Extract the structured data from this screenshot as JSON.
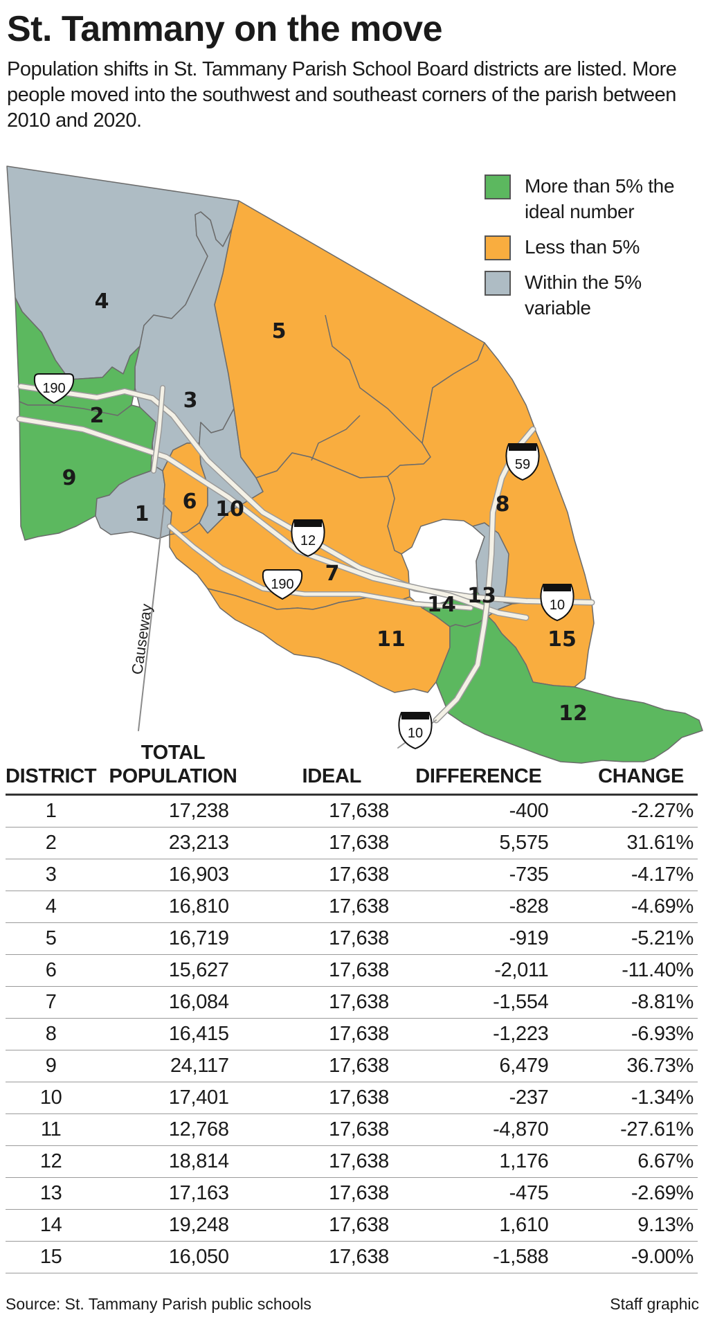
{
  "title": "St. Tammany on the move",
  "subtitle": "Population shifts in St. Tammany Parish School Board districts are listed. More people moved into the southwest and southeast corners of the parish between 2010 and 2020.",
  "colors": {
    "over": "#5cb85f",
    "under": "#f9ad3f",
    "within": "#aebcc4",
    "border": "#6b6b6b",
    "road": "#f4f1e6"
  },
  "legend": [
    {
      "key": "over",
      "label_line1": "More than 5% the",
      "label_line2": "ideal number"
    },
    {
      "key": "under",
      "label_line1": "Less than 5%",
      "label_line2": ""
    },
    {
      "key": "within",
      "label_line1": "Within the 5%",
      "label_line2": "variable"
    }
  ],
  "map_labels": {
    "d1": "1",
    "d2": "2",
    "d3": "3",
    "d4": "4",
    "d5": "5",
    "d6": "6",
    "d7": "7",
    "d8": "8",
    "d9": "9",
    "d10": "10",
    "d11": "11",
    "d12": "12",
    "d13": "13",
    "d14": "14",
    "d15": "15"
  },
  "road_labels": {
    "us190_west": "190",
    "us190_south": "190",
    "i12": "12",
    "i59": "59",
    "i10_east": "10",
    "i10_south": "10",
    "causeway": "Causeway"
  },
  "table": {
    "headers": {
      "district": "DISTRICT",
      "pop_line1": "TOTAL",
      "pop_line2": "POPULATION",
      "ideal": "IDEAL",
      "difference": "DIFFERENCE",
      "change": "CHANGE"
    },
    "rows": [
      {
        "district": "1",
        "population": "17,238",
        "ideal": "17,638",
        "difference": "-400",
        "change": "-2.27%"
      },
      {
        "district": "2",
        "population": "23,213",
        "ideal": "17,638",
        "difference": "5,575",
        "change": "31.61%"
      },
      {
        "district": "3",
        "population": "16,903",
        "ideal": "17,638",
        "difference": "-735",
        "change": "-4.17%"
      },
      {
        "district": "4",
        "population": "16,810",
        "ideal": "17,638",
        "difference": "-828",
        "change": "-4.69%"
      },
      {
        "district": "5",
        "population": "16,719",
        "ideal": "17,638",
        "difference": "-919",
        "change": "-5.21%"
      },
      {
        "district": "6",
        "population": "15,627",
        "ideal": "17,638",
        "difference": "-2,011",
        "change": "-11.40%"
      },
      {
        "district": "7",
        "population": "16,084",
        "ideal": "17,638",
        "difference": "-1,554",
        "change": "-8.81%"
      },
      {
        "district": "8",
        "population": "16,415",
        "ideal": "17,638",
        "difference": "-1,223",
        "change": "-6.93%"
      },
      {
        "district": "9",
        "population": "24,117",
        "ideal": "17,638",
        "difference": "6,479",
        "change": "36.73%"
      },
      {
        "district": "10",
        "population": "17,401",
        "ideal": "17,638",
        "difference": "-237",
        "change": "-1.34%"
      },
      {
        "district": "11",
        "population": "12,768",
        "ideal": "17,638",
        "difference": "-4,870",
        "change": "-27.61%"
      },
      {
        "district": "12",
        "population": "18,814",
        "ideal": "17,638",
        "difference": "1,176",
        "change": "6.67%"
      },
      {
        "district": "13",
        "population": "17,163",
        "ideal": "17,638",
        "difference": "-475",
        "change": "-2.69%"
      },
      {
        "district": "14",
        "population": "19,248",
        "ideal": "17,638",
        "difference": "1,610",
        "change": "9.13%"
      },
      {
        "district": "15",
        "population": "16,050",
        "ideal": "17,638",
        "difference": "-1,588",
        "change": "-9.00%"
      }
    ]
  },
  "source": "Source: St. Tammany Parish public schools",
  "credit": "Staff graphic"
}
